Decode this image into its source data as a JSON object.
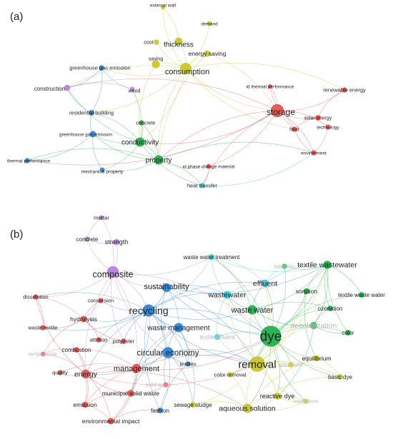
{
  "colors": {
    "red": "#e8524f",
    "green": "#22b04b",
    "blue": "#2f86d4",
    "yellow": "#c9c62a",
    "purple": "#b784d8",
    "cyan": "#3cc7d8"
  },
  "panels": [
    {
      "label": "(a)",
      "nodes": [
        {
          "id": "a-external-wall",
          "label": "external wall",
          "color": "yellow",
          "size": 1,
          "fs": 6.5
        },
        {
          "id": "a-demand",
          "label": "demand",
          "color": "yellow",
          "size": 1.2,
          "fs": 6.5
        },
        {
          "id": "a-cost",
          "label": "cost",
          "color": "yellow",
          "size": 1.4,
          "fs": 7.5
        },
        {
          "id": "a-thickness",
          "label": "thickness",
          "color": "yellow",
          "size": 2.6,
          "fs": 10
        },
        {
          "id": "a-energy-saving",
          "label": "energy saving",
          "color": "yellow",
          "size": 2,
          "fs": 8.5
        },
        {
          "id": "a-saving",
          "label": "saving",
          "color": "yellow",
          "size": 2.8,
          "fs": 7
        },
        {
          "id": "a-consumption",
          "label": "consumption",
          "color": "yellow",
          "size": 4.4,
          "fs": 11
        },
        {
          "id": "a-greenhouse-gas-emission",
          "label": "greenhouse gas emission",
          "color": "blue",
          "size": 1.4,
          "fs": 7.5
        },
        {
          "id": "a-construction",
          "label": "construction",
          "color": "purple",
          "size": 1.8,
          "fs": 8
        },
        {
          "id": "a-wood",
          "label": "wood",
          "color": "purple",
          "size": 1.2,
          "fs": 7
        },
        {
          "id": "a-residential-building",
          "label": "residential building",
          "color": "blue",
          "size": 1.6,
          "fs": 7.5
        },
        {
          "id": "a-concrete",
          "label": "concrete",
          "color": "green",
          "size": 1.4,
          "fs": 7
        },
        {
          "id": "a-conductivity",
          "label": "conductivity",
          "color": "green",
          "size": 3.4,
          "fs": 10
        },
        {
          "id": "a-greenhouse-gas-emission-2",
          "label": "greenhouse gas emission",
          "color": "blue",
          "size": 2,
          "fs": 6.5
        },
        {
          "id": "a-property",
          "label": "property",
          "color": "green",
          "size": 3.4,
          "fs": 10
        },
        {
          "id": "a-thermal-performance",
          "label": "thermal performance",
          "color": "blue",
          "size": 1.4,
          "fs": 6.5
        },
        {
          "id": "a-mechanical-property",
          "label": "mechanical property",
          "color": "blue",
          "size": 1.2,
          "fs": 6.5
        },
        {
          "id": "a-phase-change-material",
          "label": "id phase change material",
          "color": "red",
          "size": 1.2,
          "fs": 6.5
        },
        {
          "id": "a-heat-transfer",
          "label": "heat transfer",
          "color": "cyan",
          "size": 1.4,
          "fs": 7.5
        },
        {
          "id": "a-id-thermal-performance",
          "label": "id thermal performance",
          "color": "red",
          "size": 1,
          "fs": 6.5
        },
        {
          "id": "a-storage",
          "label": "storage",
          "color": "red",
          "size": 5.2,
          "fs": 12
        },
        {
          "id": "a-renewable-energy",
          "label": "renewable energy",
          "color": "red",
          "size": 1.4,
          "fs": 7.5
        },
        {
          "id": "a-solar-energy",
          "label": "solar energy",
          "color": "red",
          "size": 1.6,
          "fs": 7
        },
        {
          "id": "a-technology",
          "label": "technology",
          "color": "red",
          "size": 1.4,
          "fs": 6.5
        },
        {
          "id": "a-heat",
          "label": "heat",
          "color": "red",
          "size": 1.4,
          "fs": 7
        },
        {
          "id": "a-environment",
          "label": "environment",
          "color": "red",
          "size": 1.4,
          "fs": 6.5
        }
      ]
    },
    {
      "label": "(b)",
      "nodes": [
        {
          "id": "b-mortar",
          "label": "mortar",
          "color": "purple",
          "size": 1.2,
          "fs": 7.5
        },
        {
          "id": "b-concrete",
          "label": "concrete",
          "color": "purple",
          "size": 1.4,
          "fs": 8
        },
        {
          "id": "b-strength",
          "label": "strength",
          "color": "purple",
          "size": 1.8,
          "fs": 9
        },
        {
          "id": "b-composite",
          "label": "composite",
          "color": "purple",
          "size": 4.6,
          "fs": 12.5
        },
        {
          "id": "b-sustainability",
          "label": "sustainability",
          "color": "blue",
          "size": 3.2,
          "fs": 11
        },
        {
          "id": "b-dissolution",
          "label": "dissolution",
          "color": "red",
          "size": 1.4,
          "fs": 7.5
        },
        {
          "id": "b-conversion",
          "label": "conversion",
          "color": "red",
          "size": 1.4,
          "fs": 7.5
        },
        {
          "id": "b-recycling",
          "label": "recycling",
          "color": "blue",
          "size": 4.8,
          "fs": 14
        },
        {
          "id": "b-hydrolysis",
          "label": "hydrolysis",
          "color": "red",
          "size": 2,
          "fs": 8.5
        },
        {
          "id": "b-waste-textile",
          "label": "waste textile",
          "color": "red",
          "size": 1.4,
          "fs": 7.5
        },
        {
          "id": "b-attrition",
          "label": "attrition",
          "color": "red",
          "size": 1.4,
          "fs": 7.5
        },
        {
          "id": "b-polyester",
          "label": "polyester",
          "color": "red",
          "size": 1.6,
          "fs": 7.5
        },
        {
          "id": "b-temperature",
          "label": "temperature",
          "color": "red",
          "size": 1.2,
          "fs": 7.5,
          "faint": true
        },
        {
          "id": "b-combustion",
          "label": "combustion",
          "color": "red",
          "size": 1.6,
          "fs": 8
        },
        {
          "id": "b-waste-management",
          "label": "waste management",
          "color": "blue",
          "size": 3.4,
          "fs": 10
        },
        {
          "id": "b-circular-economy",
          "label": "circular economy",
          "color": "blue",
          "size": 4.2,
          "fs": 11.5
        },
        {
          "id": "b-textiles",
          "label": "textiles",
          "color": "blue",
          "size": 1.4,
          "fs": 7.5
        },
        {
          "id": "b-management",
          "label": "management",
          "color": "red",
          "size": 3.2,
          "fs": 11
        },
        {
          "id": "b-energy",
          "label": "energy",
          "color": "red",
          "size": 3.2,
          "fs": 10.5
        },
        {
          "id": "b-quality",
          "label": "quality",
          "color": "red",
          "size": 1.4,
          "fs": 7.5
        },
        {
          "id": "b-solid-waste",
          "label": "solid waste",
          "color": "red",
          "size": 1.4,
          "fs": 7.5,
          "faint": true
        },
        {
          "id": "b-municipal-solid-waste",
          "label": "municipal solid waste",
          "color": "red",
          "size": 2.2,
          "fs": 8.5
        },
        {
          "id": "b-emission",
          "label": "emission",
          "color": "red",
          "size": 1.8,
          "fs": 8.5
        },
        {
          "id": "b-sewage-sludge",
          "label": "sewage sludge",
          "color": "yellow",
          "size": 1.6,
          "fs": 8
        },
        {
          "id": "b-fashion",
          "label": "fashion",
          "color": "blue",
          "size": 1.6,
          "fs": 8
        },
        {
          "id": "b-environmental-impact",
          "label": "environmental impact",
          "color": "red",
          "size": 2,
          "fs": 8.5
        },
        {
          "id": "b-waste-water-treatment",
          "label": "waste water treatment",
          "color": "cyan",
          "size": 1.6,
          "fs": 8
        },
        {
          "id": "b-oxidation",
          "label": "oxidation",
          "color": "green",
          "size": 1.4,
          "fs": 7.5,
          "faint": true
        },
        {
          "id": "b-textile-wastewater",
          "label": "textile wastewater",
          "color": "green",
          "size": 2.8,
          "fs": 10.5
        },
        {
          "id": "b-effluent",
          "label": "effluent",
          "color": "cyan",
          "size": 2.6,
          "fs": 10.5
        },
        {
          "id": "b-wastewater",
          "label": "wastewater",
          "color": "cyan",
          "size": 2.6,
          "fs": 10.5
        },
        {
          "id": "b-sorption",
          "label": "sorption",
          "color": "green",
          "size": 1.8,
          "fs": 8.5
        },
        {
          "id": "b-textile-waste-water",
          "label": "textile waste water",
          "color": "green",
          "size": 1.6,
          "fs": 8
        },
        {
          "id": "b-waste-water",
          "label": "waste water",
          "color": "green",
          "size": 3.4,
          "fs": 11
        },
        {
          "id": "b-ozonation",
          "label": "ozonation",
          "color": "green",
          "size": 1.6,
          "fs": 8
        },
        {
          "id": "b-decolorization",
          "label": "decolorization",
          "color": "green",
          "size": 2.4,
          "fs": 10.5,
          "faint": true
        },
        {
          "id": "b-textile-effluent",
          "label": "textile effluent",
          "color": "cyan",
          "size": 1.8,
          "fs": 8,
          "faint": true
        },
        {
          "id": "b-dye",
          "label": "dye",
          "color": "green",
          "size": 9,
          "fs": 19
        },
        {
          "id": "b-color",
          "label": "color",
          "color": "green",
          "size": 1.6,
          "fs": 8
        },
        {
          "id": "b-removal",
          "label": "removal",
          "color": "yellow",
          "size": 6.4,
          "fs": 15
        },
        {
          "id": "b-equilibrium",
          "label": "equilibrium",
          "color": "yellow",
          "size": 1.8,
          "fs": 8.5
        },
        {
          "id": "b-adsorbent",
          "label": "adsorbent",
          "color": "yellow",
          "size": 1.6,
          "fs": 7.5,
          "faint": true
        },
        {
          "id": "b-color-removal",
          "label": "color removal",
          "color": "yellow",
          "size": 1.4,
          "fs": 7.5
        },
        {
          "id": "b-basic-dye",
          "label": "basic dye",
          "color": "yellow",
          "size": 1.6,
          "fs": 8
        },
        {
          "id": "b-reactive-dye",
          "label": "reactive dye",
          "color": "yellow",
          "size": 2.2,
          "fs": 9
        },
        {
          "id": "b-methylene",
          "label": "methylene",
          "color": "yellow",
          "size": 1.4,
          "fs": 7.5,
          "faint": true
        },
        {
          "id": "b-aqueous-solution",
          "label": "aqueous solution",
          "color": "yellow",
          "size": 3.4,
          "fs": 10.5
        }
      ]
    }
  ]
}
